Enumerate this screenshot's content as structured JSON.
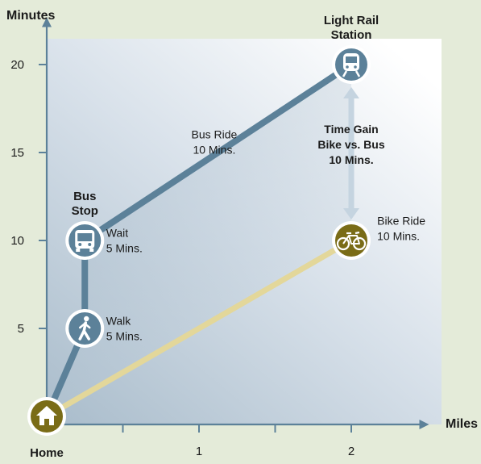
{
  "chart_data": {
    "type": "line",
    "xlabel": "Miles",
    "ylabel": "Minutes",
    "x_ticks": [
      0.5,
      1,
      1.5,
      2
    ],
    "x_tick_labels": [
      {
        "value": 1,
        "label": "1"
      },
      {
        "value": 2,
        "label": "2"
      }
    ],
    "y_ticks": [
      5,
      10,
      15,
      20
    ],
    "y_tick_labels": [
      {
        "value": 5,
        "label": "5"
      },
      {
        "value": 10,
        "label": "10"
      },
      {
        "value": 15,
        "label": "15"
      },
      {
        "value": 20,
        "label": "20"
      }
    ],
    "xlim": [
      0,
      2.5
    ],
    "ylim": [
      0,
      22.5
    ],
    "series": [
      {
        "key": "bus",
        "color": "#5c8199",
        "points": [
          {
            "x": 0,
            "y": 0
          },
          {
            "x": 0.25,
            "y": 5
          },
          {
            "x": 0.25,
            "y": 10
          },
          {
            "x": 2,
            "y": 20
          }
        ]
      },
      {
        "key": "bike",
        "color": "#e3d79a",
        "points": [
          {
            "x": 0,
            "y": 0
          },
          {
            "x": 2,
            "y": 10
          }
        ]
      }
    ],
    "markers": [
      {
        "name": "home-marker",
        "icon": "house-icon",
        "x": 0,
        "y": 0,
        "label_lines": [
          "Home"
        ],
        "label_pos": "below",
        "fill": "#7a6c17"
      },
      {
        "name": "walk-marker",
        "icon": "pedestrian-icon",
        "x": 0.25,
        "y": 5,
        "label_lines": [],
        "fill": "#5c8199"
      },
      {
        "name": "bus-stop-marker",
        "icon": "bus-icon",
        "x": 0.25,
        "y": 10,
        "label_lines": [
          "Bus",
          "Stop"
        ],
        "label_pos": "above",
        "fill": "#5c8199"
      },
      {
        "name": "light-rail-marker",
        "icon": "train-icon",
        "x": 2,
        "y": 20,
        "label_lines": [
          "Light Rail",
          "Station"
        ],
        "label_pos": "above",
        "fill": "#5c8199"
      },
      {
        "name": "bike-marker",
        "icon": "bicycle-icon",
        "x": 2,
        "y": 10,
        "label_lines": [],
        "fill": "#7a6c17"
      }
    ],
    "annotations": [
      {
        "name": "walk-annotation",
        "lines": [
          "Walk",
          "5 Mins."
        ],
        "x": 0.39,
        "y": 5.2,
        "bold": false
      },
      {
        "name": "wait-annotation",
        "lines": [
          "Wait",
          "5 Mins."
        ],
        "x": 0.39,
        "y": 10.2,
        "bold": false
      },
      {
        "name": "bus-ride-annotation",
        "lines": [
          "Bus Ride",
          "10 Mins."
        ],
        "x": 1.1,
        "y": 15.8,
        "bold": false,
        "anchor": "middle"
      },
      {
        "name": "bike-ride-annotation",
        "lines": [
          "Bike Ride",
          "10 Mins."
        ],
        "x": 2.17,
        "y": 10.9,
        "bold": false
      },
      {
        "name": "time-gain-annotation",
        "lines": [
          "Time Gain",
          "Bike vs. Bus",
          "10 Mins."
        ],
        "x": 2,
        "y": 16.1,
        "bold": true,
        "anchor": "middle"
      }
    ],
    "colors": {
      "background": "#e4ebd9",
      "axis": "#5c8199",
      "bus": "#5c8199",
      "bike": "#e3d79a",
      "home": "#7a6c17",
      "gain_arrow": "#c5d4e0"
    }
  }
}
